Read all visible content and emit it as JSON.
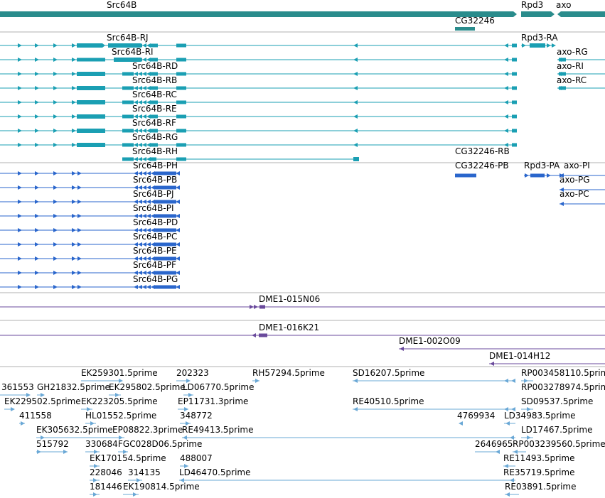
{
  "colors": {
    "gene": "#2a8c8c",
    "transcript": "#1a9fb3",
    "protein": "#2a66cc",
    "clone": "#6a4a9c",
    "est": "#6aa8d6",
    "separator": "#b0b0b0"
  },
  "genes": [
    "Src64B",
    "Rpd3",
    "axo",
    "CG32246"
  ],
  "transcripts": [
    "Src64B-RJ",
    "Src64B-RI",
    "Src64B-RD",
    "Src64B-RB",
    "Src64B-RC",
    "Src64B-RE",
    "Src64B-RF",
    "Src64B-RG",
    "Src64B-RH",
    "Rpd3-RA",
    "axo-RG",
    "axo-RI",
    "axo-RC",
    "CG32246-RB"
  ],
  "proteins": [
    "Src64B-PH",
    "Src64B-PB",
    "Src64B-PJ",
    "Src64B-PI",
    "Src64B-PD",
    "Src64B-PC",
    "Src64B-PE",
    "Src64B-PF",
    "Src64B-PG",
    "CG32246-PB",
    "Rpd3-PA",
    "axo-PI",
    "axo-PG",
    "axo-PC"
  ],
  "clones": [
    "DME1-015N06",
    "DME1-016K21",
    "DME1-002O09",
    "DME1-014H12"
  ],
  "ests": [
    "EK259301.5prime",
    "202323",
    "RH57294.5prime",
    "SD16207.5prime",
    "RP003458110.5prime",
    "361553",
    "GH21832.5prime",
    "EK295802.5prime",
    "LD06770.5prime",
    "RP003278974.5prime",
    "EK229502.5prime",
    "EK223205.5prime",
    "EP11731.3prime",
    "RE40510.5prime",
    "SD09537.5prime",
    "411558",
    "HL01552.5prime",
    "348772",
    "4769934",
    "LD34983.5prime",
    "EK305632.5prime",
    "EP08822.3prime",
    "RE49413.5prime",
    "LD17467.5prime",
    "515792",
    "330684",
    "FGC028D06.5prime",
    "2646965",
    "RP003239560.5prime",
    "EK170154.5prime",
    "488007",
    "RE11493.5prime",
    "228046",
    "314135",
    "LD46470.5prime",
    "RE35719.5prime",
    "181446",
    "EK190814.5prime",
    "RE03891.5prime"
  ]
}
